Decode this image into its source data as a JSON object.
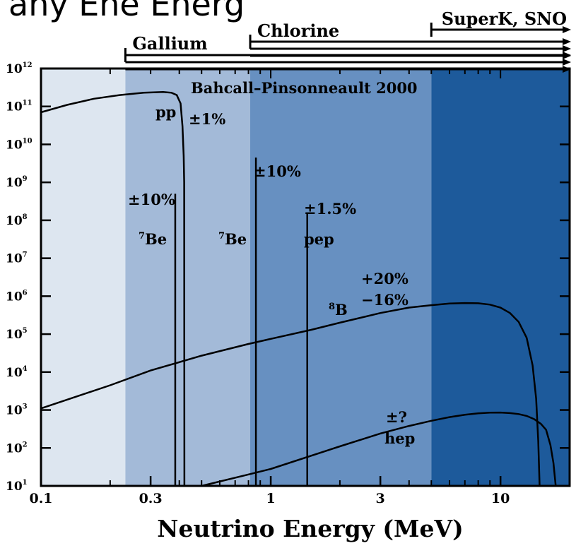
{
  "page": {
    "top_text": "any Ene Energ"
  },
  "chart_data": {
    "type": "line",
    "annotation_title": "Bahcall–Pinsonneault 2000",
    "xlabel": "Neutrino Energy (MeV)",
    "ylabel": "",
    "x_scale": "log",
    "y_scale": "log",
    "xlim": [
      0.1,
      20
    ],
    "ylim": [
      10,
      1000000000000
    ],
    "x_ticks": [
      {
        "value": 0.1,
        "label": "0.1"
      },
      {
        "value": 0.3,
        "label": "0.3"
      },
      {
        "value": 1,
        "label": "1"
      },
      {
        "value": 3,
        "label": "3"
      },
      {
        "value": 10,
        "label": "10"
      }
    ],
    "y_ticks": [
      {
        "value": 10,
        "base": "10",
        "exp": "1"
      },
      {
        "value": 100,
        "base": "10",
        "exp": "2"
      },
      {
        "value": 1000,
        "base": "10",
        "exp": "3"
      },
      {
        "value": 10000,
        "base": "10",
        "exp": "4"
      },
      {
        "value": 100000,
        "base": "10",
        "exp": "5"
      },
      {
        "value": 1000000,
        "base": "10",
        "exp": "6"
      },
      {
        "value": 10000000,
        "base": "10",
        "exp": "7"
      },
      {
        "value": 100000000,
        "base": "10",
        "exp": "8"
      },
      {
        "value": 1000000000,
        "base": "10",
        "exp": "9"
      },
      {
        "value": 10000000000,
        "base": "10",
        "exp": "10"
      },
      {
        "value": 100000000000,
        "base": "10",
        "exp": "11"
      },
      {
        "value": 1000000000000,
        "base": "10",
        "exp": "12"
      }
    ],
    "bands": [
      {
        "from": 0.1,
        "to": 0.233,
        "color": "#dde6f0"
      },
      {
        "from": 0.233,
        "to": 0.814,
        "color": "#a3bad8"
      },
      {
        "from": 0.814,
        "to": 5.0,
        "color": "#6790c1"
      },
      {
        "from": 5.0,
        "to": 20,
        "color": "#1d5a9b"
      }
    ],
    "thresholds": [
      {
        "name": "Gallium",
        "x": 0.233
      },
      {
        "name": "Chlorine",
        "x": 0.814
      },
      {
        "name": "SuperK, SNO",
        "x": 5.0
      }
    ],
    "series": [
      {
        "label": "pp",
        "uncertainty": "±1%",
        "points": [
          [
            0.1,
            70000000000.0
          ],
          [
            0.13,
            110000000000.0
          ],
          [
            0.17,
            160000000000.0
          ],
          [
            0.22,
            200000000000.0
          ],
          [
            0.28,
            230000000000.0
          ],
          [
            0.34,
            240000000000.0
          ],
          [
            0.37,
            230000000000.0
          ],
          [
            0.39,
            200000000000.0
          ],
          [
            0.405,
            120000000000.0
          ],
          [
            0.413,
            30000000000.0
          ],
          [
            0.418,
            5000000000.0
          ],
          [
            0.42,
            1000000000.0
          ],
          [
            0.421,
            10
          ]
        ]
      },
      {
        "label": "8B",
        "uncertainty_upper": "+20%",
        "uncertainty_lower": "−16%",
        "points": [
          [
            0.1,
            1100.0
          ],
          [
            0.2,
            4500.0
          ],
          [
            0.3,
            11000.0
          ],
          [
            0.5,
            27000.0
          ],
          [
            0.8,
            55000.0
          ],
          [
            1.0,
            75000.0
          ],
          [
            1.5,
            130000.0
          ],
          [
            2.0,
            200000.0
          ],
          [
            3.0,
            360000.0
          ],
          [
            4.0,
            500000.0
          ],
          [
            5.0,
            580000.0
          ],
          [
            6.0,
            640000.0
          ],
          [
            7.0,
            660000.0
          ],
          [
            8.0,
            650000.0
          ],
          [
            9.0,
            600000.0
          ],
          [
            10.0,
            500000.0
          ],
          [
            11.0,
            360000.0
          ],
          [
            12.0,
            210000.0
          ],
          [
            13.0,
            80000.0
          ],
          [
            13.8,
            15000.0
          ],
          [
            14.3,
            2000.0
          ],
          [
            14.6,
            150.0
          ],
          [
            14.8,
            10
          ]
        ]
      },
      {
        "label": "hep",
        "uncertainty": "±?",
        "points": [
          [
            0.5,
            10
          ],
          [
            0.8,
            20
          ],
          [
            1.0,
            28
          ],
          [
            2.0,
            110
          ],
          [
            3.0,
            240
          ],
          [
            4.0,
            380
          ],
          [
            5.0,
            520
          ],
          [
            6.0,
            650
          ],
          [
            7.0,
            750
          ],
          [
            8.0,
            820
          ],
          [
            9.0,
            850
          ],
          [
            10.0,
            860
          ],
          [
            11.0,
            830
          ],
          [
            12.0,
            780
          ],
          [
            13.0,
            700
          ],
          [
            14.0,
            580
          ],
          [
            15.0,
            430
          ],
          [
            15.8,
            300
          ],
          [
            16.5,
            120
          ],
          [
            17.0,
            40
          ],
          [
            17.4,
            10
          ]
        ]
      }
    ],
    "lines": [
      {
        "label": "7Be",
        "uncertainty": "±10%",
        "x": 0.384,
        "y": 500000000.0
      },
      {
        "label": "7Be",
        "uncertainty": "±10%",
        "x": 0.862,
        "y": 4500000000.0
      },
      {
        "label": "pep",
        "uncertainty": "±1.5%",
        "x": 1.442,
        "y": 150000000.0
      }
    ]
  }
}
